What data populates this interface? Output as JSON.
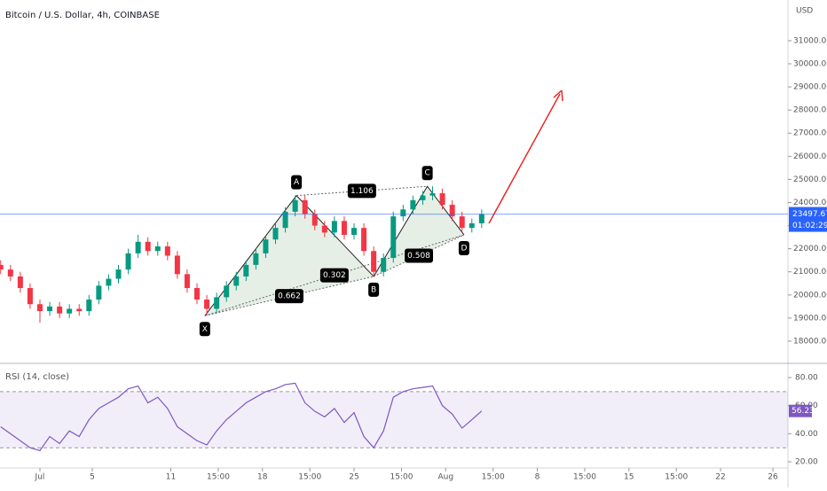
{
  "chart_data": [
    {
      "type": "candlestick",
      "title": "Bitcoin / U.S. Dollar, 4h, COINBASE",
      "currency": "USD",
      "countdown": "01:02:29",
      "up_color": "#089981",
      "down_color": "#f23645",
      "last_color": "#2962ff",
      "xlim": [
        -3.05,
        57.15
      ],
      "ylim": [
        17040,
        32760
      ],
      "yticks": [
        {
          "value": 18000,
          "label": "18000.00"
        },
        {
          "value": 19000,
          "label": "19000.00"
        },
        {
          "value": 20000,
          "label": "20000.00"
        },
        {
          "value": 21000,
          "label": "21000.00"
        },
        {
          "value": 22000,
          "label": "22000.00"
        },
        {
          "value": 23000,
          "label": "23000.00"
        },
        {
          "value": 24000,
          "label": "24000.00"
        },
        {
          "value": 25000,
          "label": "25000.00"
        },
        {
          "value": 26000,
          "label": "26000.00"
        },
        {
          "value": 27000,
          "label": "27000.00"
        },
        {
          "value": 28000,
          "label": "28000.00"
        },
        {
          "value": 29000,
          "label": "29000.00"
        },
        {
          "value": 30000,
          "label": "30000.00"
        },
        {
          "value": 31000,
          "label": "31000.00"
        }
      ],
      "x": [
        -3,
        -2.25,
        -1.5,
        -0.75,
        0,
        0.75,
        1.5,
        2.25,
        3,
        3.75,
        4.5,
        5.25,
        6,
        6.75,
        7.5,
        8.25,
        9,
        9.75,
        10.5,
        11.25,
        12,
        12.75,
        13.5,
        14.25,
        15,
        15.75,
        16.5,
        17.25,
        18,
        18.75,
        19.5,
        20.25,
        21,
        21.75,
        22.5,
        23.25,
        24,
        24.75,
        25.5,
        26.25,
        27,
        27.75,
        28.5,
        29.25,
        30,
        30.75,
        31.5,
        32.25,
        33,
        33.75
      ],
      "open": [
        21300,
        21100,
        20800,
        20300,
        19600,
        19300,
        19500,
        19200,
        19400,
        19300,
        19800,
        20400,
        20700,
        21100,
        21800,
        22300,
        21900,
        22100,
        21700,
        20900,
        20300,
        19800,
        19400,
        19900,
        20400,
        20800,
        21300,
        21800,
        22400,
        22900,
        23600,
        24100,
        23500,
        23000,
        22700,
        23200,
        22600,
        22900,
        21900,
        21000,
        21600,
        23400,
        23700,
        24100,
        24300,
        24400,
        23900,
        23400,
        22900,
        23100
      ],
      "high": [
        21500,
        21300,
        21000,
        20500,
        19800,
        19700,
        19700,
        19600,
        19600,
        20000,
        20600,
        20900,
        21300,
        22000,
        22600,
        22500,
        22300,
        22300,
        21900,
        21100,
        20500,
        20000,
        20100,
        20600,
        21000,
        21500,
        22000,
        22600,
        23100,
        23800,
        24300,
        24300,
        23700,
        23200,
        23400,
        23400,
        23100,
        23100,
        22100,
        21800,
        23600,
        23900,
        24300,
        24500,
        24700,
        24600,
        24100,
        23600,
        23300,
        23700
      ],
      "low": [
        20900,
        20600,
        20100,
        19400,
        18800,
        19100,
        19000,
        19000,
        19100,
        19100,
        19600,
        20200,
        20500,
        20900,
        21600,
        21700,
        21700,
        21500,
        20700,
        20100,
        19600,
        19100,
        19200,
        19700,
        20200,
        20600,
        21100,
        21600,
        22200,
        22700,
        23400,
        23300,
        22800,
        22500,
        22500,
        22400,
        22400,
        21700,
        20800,
        20800,
        21400,
        23200,
        23500,
        23900,
        24100,
        23700,
        23200,
        22700,
        22700,
        22900
      ],
      "close": [
        21100,
        20800,
        20300,
        19600,
        19300,
        19500,
        19200,
        19400,
        19300,
        19800,
        20400,
        20700,
        21100,
        21800,
        22300,
        21900,
        22100,
        21700,
        20900,
        20300,
        19800,
        19400,
        19900,
        20400,
        20800,
        21300,
        21800,
        22400,
        22900,
        23600,
        24100,
        23500,
        23000,
        22700,
        23200,
        22600,
        22900,
        21900,
        21000,
        21600,
        23400,
        23700,
        24100,
        24300,
        24400,
        23900,
        23400,
        22900,
        23100,
        23497.67
      ],
      "pattern": {
        "color": "#2e7d32",
        "points": [
          {
            "label": "X",
            "x": 12.6,
            "y": 19100
          },
          {
            "label": "A",
            "x": 19.6,
            "y": 24300
          },
          {
            "label": "B",
            "x": 25.5,
            "y": 20800
          },
          {
            "label": "C",
            "x": 29.6,
            "y": 24700
          },
          {
            "label": "D",
            "x": 32.4,
            "y": 22600
          }
        ],
        "ratios": [
          0.662,
          0.302,
          1.106,
          0.508
        ]
      }
    },
    {
      "type": "line",
      "title": "RSI (14, close)",
      "color": "#7e57c2",
      "band": [
        30,
        70
      ],
      "xlim": [
        -3.05,
        57.15
      ],
      "ylim": [
        15.6,
        89.5
      ],
      "yticks": [
        {
          "value": 20,
          "label": "20.00"
        },
        {
          "value": 40,
          "label": "40.00"
        },
        {
          "value": 60,
          "label": "60.00"
        },
        {
          "value": 80,
          "label": "80.00"
        }
      ],
      "xticks": [
        {
          "value": 0,
          "label": "Jul"
        },
        {
          "value": 4,
          "label": "5"
        },
        {
          "value": 10,
          "label": "11"
        },
        {
          "value": 13.625,
          "label": "15:00"
        },
        {
          "value": 17,
          "label": "18"
        },
        {
          "value": 20.625,
          "label": "15:00"
        },
        {
          "value": 24,
          "label": "25"
        },
        {
          "value": 27.625,
          "label": "15:00"
        },
        {
          "value": 31,
          "label": "Aug"
        },
        {
          "value": 34.625,
          "label": "15:00"
        },
        {
          "value": 38,
          "label": "8"
        },
        {
          "value": 41.625,
          "label": "15:00"
        },
        {
          "value": 45,
          "label": "15"
        },
        {
          "value": 48.625,
          "label": "15:00"
        },
        {
          "value": 52,
          "label": "22"
        },
        {
          "value": 56,
          "label": "26"
        }
      ],
      "x": [
        -3,
        -2.25,
        -1.5,
        -0.75,
        0,
        0.75,
        1.5,
        2.25,
        3,
        3.75,
        4.5,
        5.25,
        6,
        6.75,
        7.5,
        8.25,
        9,
        9.75,
        10.5,
        11.25,
        12,
        12.75,
        13.5,
        14.25,
        15,
        15.75,
        16.5,
        17.25,
        18,
        18.75,
        19.5,
        20.25,
        21,
        21.75,
        22.5,
        23.25,
        24,
        24.75,
        25.5,
        26.25,
        27,
        27.75,
        28.5,
        29.25,
        30,
        30.75,
        31.5,
        32.25,
        33,
        33.75
      ],
      "values": [
        45,
        40,
        35,
        30,
        28,
        38,
        33,
        42,
        38,
        50,
        58,
        62,
        66,
        72,
        74,
        62,
        66,
        58,
        45,
        40,
        35,
        32,
        42,
        50,
        56,
        62,
        66,
        70,
        72,
        75,
        76,
        62,
        56,
        52,
        58,
        48,
        55,
        38,
        30,
        42,
        66,
        70,
        72,
        73,
        74,
        60,
        54,
        44,
        50,
        56.23
      ]
    }
  ]
}
